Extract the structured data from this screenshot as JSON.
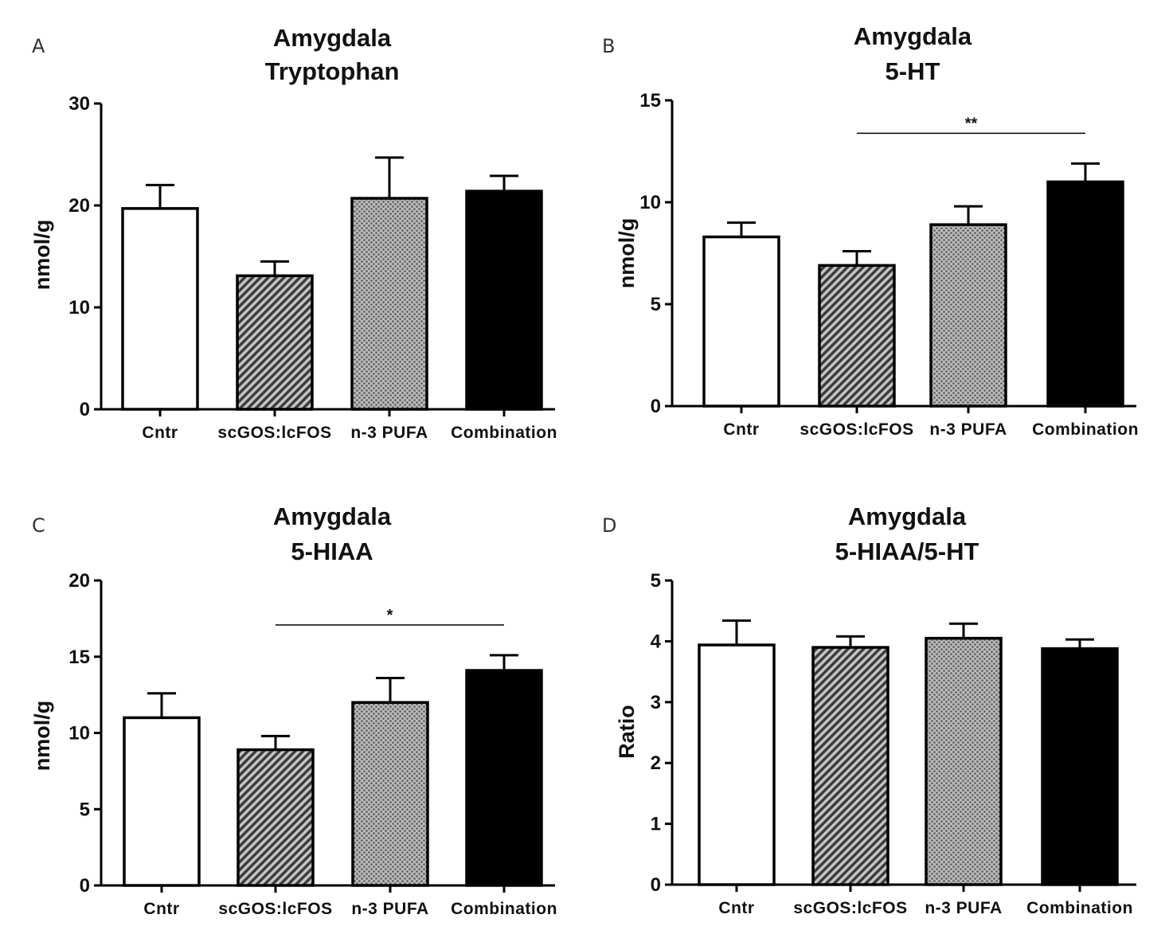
{
  "colors": {
    "cntr": "#ffffff",
    "scgos": "#8f8f8f",
    "pufa": "#a6a6a6",
    "combination": "#000000",
    "stroke": "#000000"
  },
  "chart_data": [
    {
      "type": "bar",
      "panel_label": "A",
      "title_line1": "Amygdala",
      "title_line2": "Tryptophan",
      "ylabel": "nmol/g",
      "xlabel": "",
      "ylim": [
        0,
        30
      ],
      "yticks": [
        "0",
        "10",
        "20",
        "30"
      ],
      "categories": [
        "Cntr",
        "scGOS:lcFOS",
        "n-3 PUFA",
        "Combination"
      ],
      "values": [
        19.7,
        13.1,
        20.7,
        21.4
      ],
      "errors": [
        2.3,
        1.4,
        4.0,
        1.5
      ],
      "significance": null
    },
    {
      "type": "bar",
      "panel_label": "B",
      "title_line1": "Amygdala",
      "title_line2": "5-HT",
      "ylabel": "nmol/g",
      "xlabel": "",
      "ylim": [
        0,
        15
      ],
      "yticks": [
        "0",
        "5",
        "10",
        "15"
      ],
      "categories": [
        "Cntr",
        "scGOS:lcFOS",
        "n-3 PUFA",
        "Combination"
      ],
      "values": [
        8.3,
        6.9,
        8.9,
        11.0
      ],
      "errors": [
        0.7,
        0.7,
        0.9,
        0.9
      ],
      "significance": {
        "from": 1,
        "to": 3,
        "label": "**"
      }
    },
    {
      "type": "bar",
      "panel_label": "C",
      "title_line1": "Amygdala",
      "title_line2": "5-HIAA",
      "ylabel": "nmol/g",
      "xlabel": "",
      "ylim": [
        0,
        20
      ],
      "yticks": [
        "0",
        "5",
        "10",
        "15",
        "20"
      ],
      "categories": [
        "Cntr",
        "scGOS:lcFOS",
        "n-3 PUFA",
        "Combination"
      ],
      "values": [
        11.0,
        8.9,
        12.0,
        14.1
      ],
      "errors": [
        1.6,
        0.9,
        1.6,
        1.0
      ],
      "significance": {
        "from": 1,
        "to": 3,
        "label": "*"
      }
    },
    {
      "type": "bar",
      "panel_label": "D",
      "title_line1": "Amygdala",
      "title_line2": "5-HIAA/5-HT",
      "ylabel": "Ratio",
      "xlabel": "",
      "ylim": [
        0,
        5
      ],
      "yticks": [
        "0",
        "1",
        "2",
        "3",
        "4",
        "5"
      ],
      "categories": [
        "Cntr",
        "scGOS:lcFOS",
        "n-3 PUFA",
        "Combination"
      ],
      "values": [
        3.94,
        3.9,
        4.05,
        3.88
      ],
      "errors": [
        0.4,
        0.18,
        0.24,
        0.15
      ],
      "significance": null
    }
  ]
}
